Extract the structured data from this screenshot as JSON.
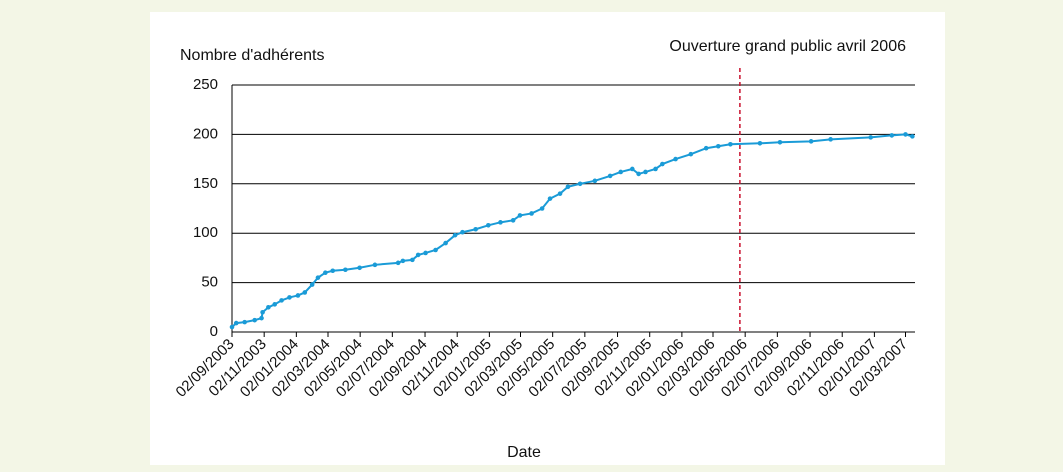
{
  "chart_data": {
    "type": "line",
    "y_label": "Nombre d'adhérents",
    "x_label": "Date",
    "color": "#1a9bd7",
    "grid": true,
    "x": [
      "02/09/2003",
      "10/09/2003",
      "26/09/2003",
      "15/10/2003",
      "28/10/2003",
      "30/10/2003",
      "10/11/2003",
      "22/11/2003",
      "05/12/2003",
      "20/12/2003",
      "05/01/2004",
      "18/01/2004",
      "01/02/2004",
      "12/02/2004",
      "26/02/2004",
      "11/03/2004",
      "04/04/2004",
      "01/05/2004",
      "30/05/2004",
      "13/07/2004",
      "22/07/2004",
      "09/08/2004",
      "20/08/2004",
      "03/09/2004",
      "22/09/2004",
      "11/10/2004",
      "29/10/2004",
      "12/11/2004",
      "07/12/2004",
      "31/12/2004",
      "23/01/2005",
      "16/02/2005",
      "01/03/2005",
      "23/03/2005",
      "12/04/2005",
      "27/04/2005",
      "16/05/2005",
      "31/05/2005",
      "23/06/2005",
      "21/07/2005",
      "19/08/2005",
      "08/09/2005",
      "30/09/2005",
      "12/10/2005",
      "25/10/2005",
      "13/11/2005",
      "26/11/2005",
      "21/12/2005",
      "19/01/2006",
      "17/02/2006",
      "12/03/2006",
      "04/04/2006",
      "30/05/2006",
      "07/07/2006",
      "04/09/2006",
      "11/10/2006",
      "26/12/2006",
      "04/02/2007",
      "02/03/2007",
      "15/03/2007"
    ],
    "values": [
      5,
      9,
      10,
      12,
      14,
      20,
      25,
      28,
      32,
      35,
      37,
      40,
      48,
      55,
      60,
      62,
      63,
      65,
      68,
      70,
      72,
      73,
      78,
      80,
      83,
      90,
      98,
      101,
      104,
      108,
      111,
      113,
      118,
      120,
      125,
      135,
      140,
      147,
      150,
      153,
      158,
      162,
      165,
      160,
      162,
      165,
      170,
      175,
      180,
      186,
      188,
      190,
      191,
      192,
      193,
      195,
      197,
      199,
      200,
      198
    ],
    "xlim": [
      "02/09/2003",
      "20/03/2007"
    ],
    "xticks": [
      "02/09/2003",
      "02/11/2003",
      "02/01/2004",
      "02/03/2004",
      "02/05/2004",
      "02/07/2004",
      "02/09/2004",
      "02/11/2004",
      "02/01/2005",
      "02/03/2005",
      "02/05/2005",
      "02/07/2005",
      "02/09/2005",
      "02/11/2005",
      "02/01/2006",
      "02/03/2006",
      "02/05/2006",
      "02/07/2006",
      "02/09/2006",
      "02/11/2006",
      "02/01/2007",
      "02/03/2007"
    ],
    "ylim": [
      0,
      250
    ],
    "yticks": [
      0,
      50,
      100,
      150,
      200,
      250
    ],
    "annotation": {
      "text": "Ouverture grand public avril 2006",
      "x": "22/04/2006",
      "color": "#c8102e"
    }
  }
}
